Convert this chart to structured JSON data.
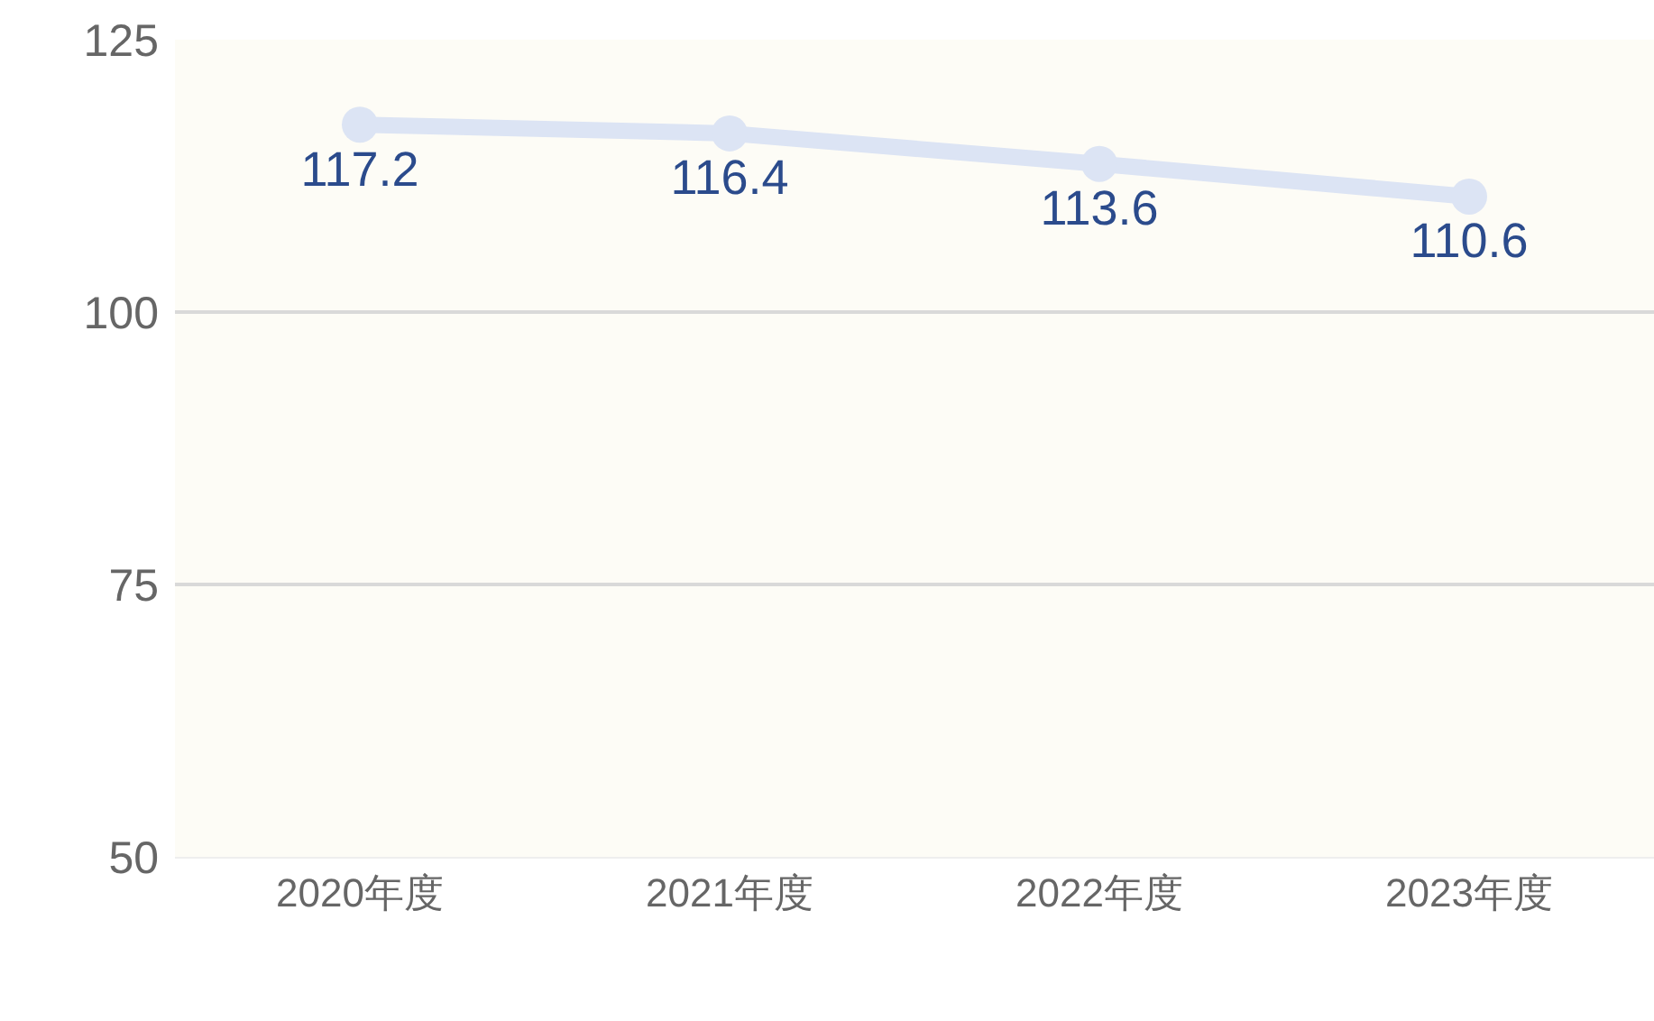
{
  "chart_data": {
    "type": "line",
    "categories": [
      "2020年度",
      "2021年度",
      "2022年度",
      "2023年度"
    ],
    "series": [
      {
        "color": "#dce4f4",
        "values": [
          117.2,
          116.4,
          113.6,
          110.6
        ]
      }
    ],
    "ylim": [
      50,
      125
    ],
    "yticks": [
      50,
      75,
      100,
      125
    ],
    "grid": "y",
    "marker": "circle",
    "data_labels": true
  }
}
